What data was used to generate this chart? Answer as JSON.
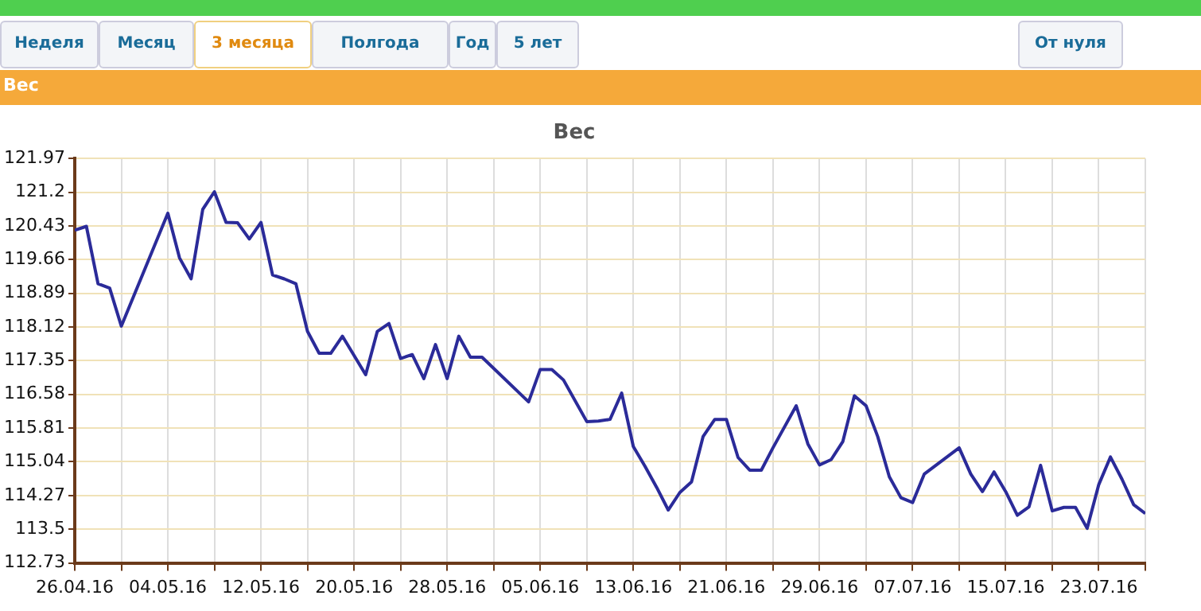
{
  "chart_data": {
    "type": "line",
    "title": "Вес",
    "annotations": [
      "Неделя",
      "Месяц",
      "3 месяца",
      "Полгода",
      "Год",
      "5 лет",
      "От нуля",
      "Вес"
    ],
    "x": [
      "--04-26",
      "--04-27",
      "--04-28",
      "--04-29",
      "--04-30",
      "--05-04",
      "--05-05",
      "--05-06",
      "--05-07",
      "--05-08",
      "--05-09",
      "--05-10",
      "--05-11",
      "--05-12",
      "--05-13",
      "--05-14",
      "--05-15",
      "--05-16",
      "--05-17",
      "--05-18",
      "--05-19",
      "--05-21",
      "--05-22",
      "--05-23",
      "--05-24",
      "--05-25",
      "--05-26",
      "--05-27",
      "--05-28",
      "--05-29",
      "--05-30",
      "--05-31",
      "--06-04",
      "--06-05",
      "--06-06",
      "--06-07",
      "--06-09",
      "--06-10",
      "--06-11",
      "--06-12",
      "--06-13",
      "--06-14",
      "--06-15",
      "--06-16",
      "--06-17",
      "--06-18",
      "--06-19",
      "--06-20",
      "--06-21",
      "--06-22",
      "--06-23",
      "--06-24",
      "--06-25",
      "--06-27",
      "--06-28",
      "--06-29",
      "--06-30",
      "--07-01",
      "--07-02",
      "--07-03",
      "--07-04",
      "--07-05",
      "--07-06",
      "--07-07",
      "--07-08",
      "--07-11",
      "--07-12",
      "--07-13",
      "--07-14",
      "--07-15",
      "--07-16",
      "--07-17",
      "--07-18",
      "--07-19",
      "--07-20",
      "--07-21",
      "--07-22",
      "--07-23",
      "--07-24",
      "--07-25",
      "--07-26",
      "--07-27"
    ],
    "series": [
      {
        "color": "#2b2b99",
        "values": [
          120.33,
          120.42,
          119.11,
          119.01,
          118.14,
          120.72,
          119.7,
          119.22,
          120.81,
          121.21,
          120.51,
          120.5,
          120.13,
          120.51,
          119.31,
          119.22,
          119.11,
          118.02,
          117.52,
          117.52,
          117.91,
          117.03,
          118.02,
          118.2,
          117.4,
          117.49,
          116.94,
          117.72,
          116.94,
          117.91,
          117.43,
          117.43,
          116.41,
          117.15,
          117.15,
          116.91,
          115.96,
          115.97,
          116.01,
          116.61,
          115.39,
          114.94,
          114.46,
          113.94,
          114.34,
          114.58,
          115.62,
          116.01,
          116.01,
          115.14,
          114.85,
          114.85,
          115.36,
          116.32,
          115.45,
          114.97,
          115.09,
          115.5,
          116.55,
          116.32,
          115.62,
          114.7,
          114.22,
          114.11,
          114.76,
          115.36,
          114.76,
          114.36,
          114.81,
          114.36,
          113.82,
          114.01,
          114.96,
          113.92,
          114.0,
          114.0,
          113.52,
          114.52,
          115.15,
          114.64,
          114.06,
          113.86
        ]
      }
    ],
    "xlim": [
      "--04-26",
      "--07-27"
    ],
    "xticks": [
      {
        "value": "--04-26",
        "label": "26.04.16"
      },
      {
        "value": "--04-30",
        "label": null
      },
      {
        "value": "--05-04",
        "label": "04.05.16"
      },
      {
        "value": "--05-08",
        "label": null
      },
      {
        "value": "--05-12",
        "label": "12.05.16"
      },
      {
        "value": "--05-16",
        "label": null
      },
      {
        "value": "--05-20",
        "label": "20.05.16"
      },
      {
        "value": "--05-24",
        "label": null
      },
      {
        "value": "--05-28",
        "label": "28.05.16"
      },
      {
        "value": "--06-01",
        "label": null
      },
      {
        "value": "--06-05",
        "label": "05.06.16"
      },
      {
        "value": "--06-09",
        "label": null
      },
      {
        "value": "--06-13",
        "label": "13.06.16"
      },
      {
        "value": "--06-17",
        "label": null
      },
      {
        "value": "--06-21",
        "label": "21.06.16"
      },
      {
        "value": "--06-25",
        "label": null
      },
      {
        "value": "--06-29",
        "label": "29.06.16"
      },
      {
        "value": "--07-03",
        "label": null
      },
      {
        "value": "--07-07",
        "label": "07.07.16"
      },
      {
        "value": "--07-11",
        "label": null
      },
      {
        "value": "--07-15",
        "label": "15.07.16"
      },
      {
        "value": "--07-19",
        "label": null
      },
      {
        "value": "--07-23",
        "label": "23.07.16"
      },
      {
        "value": "--07-27",
        "label": null
      }
    ],
    "ylim": [
      112.73,
      121.97
    ],
    "yticks": [
      112.73,
      113.5,
      114.27,
      115.04,
      115.81,
      116.58,
      117.35,
      118.12,
      118.89,
      119.66,
      120.43,
      121.2,
      121.97
    ],
    "grid": true,
    "legend": false,
    "marker": "none",
    "line_style": "solid"
  }
}
